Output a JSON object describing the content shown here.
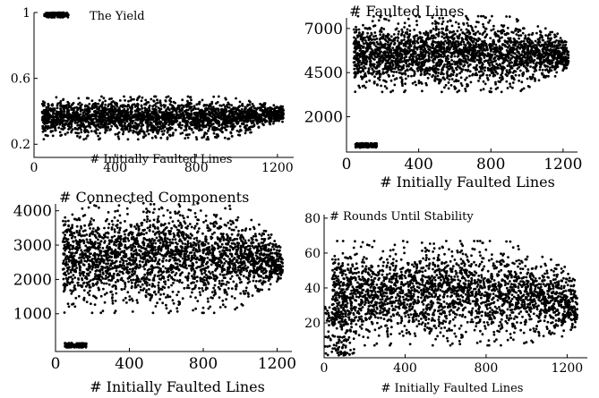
{
  "chart_data": [
    {
      "type": "scatter",
      "panel": "top-left",
      "title": "The Yield",
      "xlabel": "# Initially Faulted Lines",
      "ylabel": "",
      "xlim": [
        0,
        1280
      ],
      "ylim": [
        0.12,
        1.0
      ],
      "xticks": [
        0,
        400,
        800,
        1200
      ],
      "yticks": [
        0.2,
        0.6,
        1
      ],
      "ytick_labels": [
        "0.2",
        "0.6",
        "1"
      ],
      "xtick_labels": [
        "0",
        "400",
        "800",
        "1200"
      ],
      "grid": false,
      "clusters": [
        {
          "x_range": [
            50,
            170
          ],
          "y_range": [
            0.97,
            1.0
          ]
        },
        {
          "x_range": [
            40,
            1230
          ],
          "y_range": [
            0.26,
            0.46
          ],
          "center": 0.36,
          "taper_after": 950,
          "taper_to": [
            0.34,
            0.42
          ]
        }
      ]
    },
    {
      "type": "scatter",
      "panel": "top-right",
      "title": "# Faulted Lines",
      "xlabel": "# Initially Faulted Lines",
      "ylabel": "",
      "xlim": [
        0,
        1280
      ],
      "ylim": [
        0,
        7600
      ],
      "xticks": [
        0,
        400,
        800,
        1200
      ],
      "yticks": [
        2000,
        4500,
        7000
      ],
      "ytick_labels": [
        "2000",
        "4500",
        "7000"
      ],
      "xtick_labels": [
        "0",
        "400",
        "800",
        "1200"
      ],
      "grid": false,
      "clusters": [
        {
          "x_range": [
            50,
            170
          ],
          "y_range": [
            250,
            500
          ]
        },
        {
          "x_range": [
            40,
            1230
          ],
          "y_range": [
            3900,
            7200
          ],
          "center": 5500,
          "taper_after": 950,
          "taper_to": [
            4700,
            6200
          ]
        }
      ]
    },
    {
      "type": "scatter",
      "panel": "bottom-left",
      "title": "# Connected Components",
      "xlabel": "# Initially Faulted Lines",
      "ylabel": "",
      "xlim": [
        0,
        1280
      ],
      "ylim": [
        -100,
        4200
      ],
      "xticks": [
        0,
        400,
        800,
        1200
      ],
      "yticks": [
        1000,
        2000,
        3000,
        4000
      ],
      "ytick_labels": [
        "1000",
        "2000",
        "3000",
        "4000"
      ],
      "xtick_labels": [
        "0",
        "400",
        "800",
        "1200"
      ],
      "grid": false,
      "clusters": [
        {
          "x_range": [
            50,
            170
          ],
          "y_range": [
            20,
            150
          ]
        },
        {
          "x_range": [
            40,
            1230
          ],
          "y_range": [
            1400,
            3900
          ],
          "center": 2600,
          "taper_after": 950,
          "taper_to": [
            2000,
            2900
          ]
        }
      ]
    },
    {
      "type": "scatter",
      "panel": "bottom-right",
      "title": "# Rounds Until Stability",
      "xlabel": "# Initially Faulted Lines",
      "ylabel": "",
      "xlim": [
        0,
        1300
      ],
      "ylim": [
        0,
        82
      ],
      "xticks": [
        0,
        400,
        800,
        1200
      ],
      "yticks": [
        20,
        40,
        60,
        80
      ],
      "ytick_labels": [
        "20",
        "40",
        "60",
        "80"
      ],
      "xtick_labels": [
        "0",
        "400",
        "800",
        "1200"
      ],
      "grid": false,
      "clusters": [
        {
          "x_range": [
            0,
            150
          ],
          "y_range": [
            1,
            30
          ]
        },
        {
          "x_range": [
            40,
            1250
          ],
          "y_range": [
            14,
            60
          ],
          "center": 32,
          "taper_after": 950,
          "taper_to": [
            16,
            44
          ]
        }
      ]
    }
  ]
}
